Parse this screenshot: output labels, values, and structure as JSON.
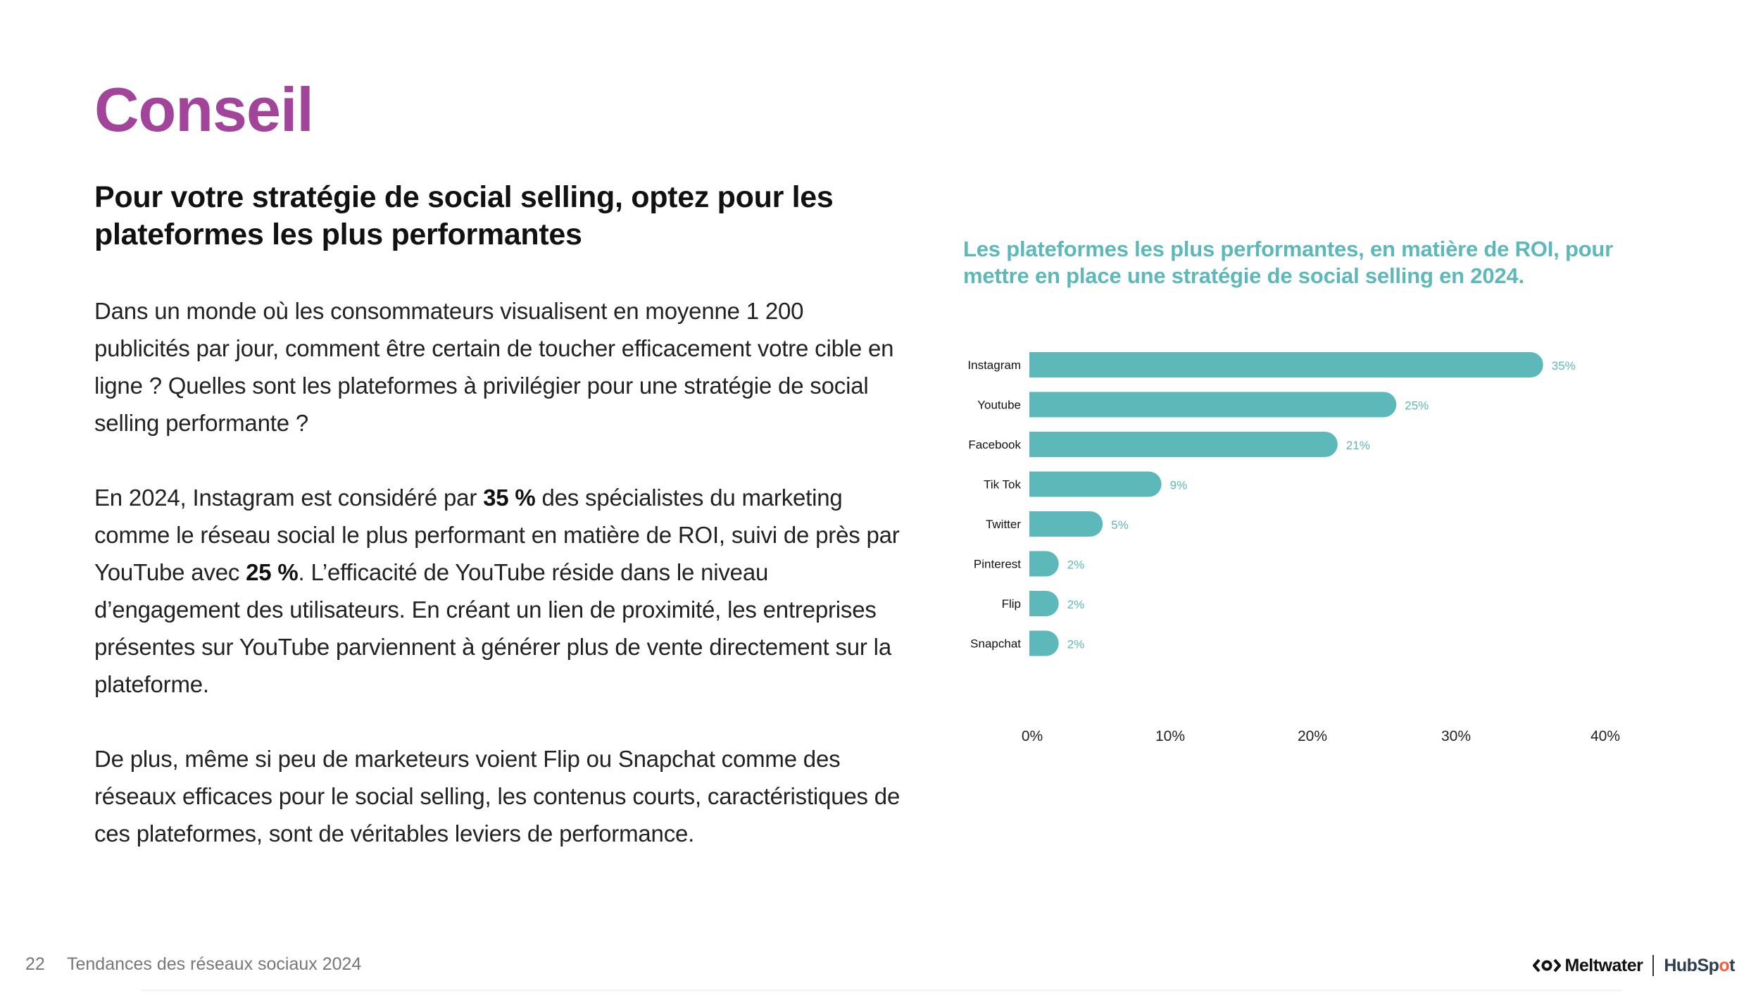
{
  "colors": {
    "title": "#a2449a",
    "accent": "#5cb8b9",
    "text": "#222222"
  },
  "page": {
    "title": "Conseil",
    "subtitle": "Pour votre stratégie de social selling, optez pour les plateformes les plus performantes"
  },
  "body": {
    "p1": "Dans un monde où les consommateurs visualisent en moyenne 1 200 publicités par jour, comment être certain de toucher efficacement votre cible en ligne ? Quelles sont les plateformes à privilégier pour une stratégie de social selling performante ?",
    "p2_a": "En 2024, Instagram est considéré par ",
    "p2_b": "35 %",
    "p2_c": " des spécialistes du marketing comme le réseau social le plus performant en matière de ROI, suivi de près par YouTube avec ",
    "p2_d": "25 %",
    "p2_e": ". L’efficacité de YouTube réside dans le niveau d’engagement des utilisateurs. En créant un lien de proximité, les entreprises présentes sur YouTube parviennent à générer plus de vente directement sur la plateforme.",
    "p3": "De plus, même si peu de marketeurs voient Flip ou Snapchat comme des réseaux efficaces pour le social selling, les contenus courts, caractéristiques de ces plateformes, sont de véritables leviers de performance."
  },
  "chart_data": {
    "type": "bar",
    "orientation": "horizontal",
    "title": "Les plateformes les plus performantes, en matière de ROI, pour mettre en place une stratégie de social selling en 2024.",
    "categories": [
      "Instagram",
      "Youtube",
      "Facebook",
      "Tik Tok",
      "Twitter",
      "Pinterest",
      "Flip",
      "Snapchat"
    ],
    "values": [
      35,
      25,
      21,
      9,
      5,
      2,
      2,
      2
    ],
    "value_labels": [
      "35%",
      "25%",
      "21%",
      "9%",
      "5%",
      "2%",
      "2%",
      "2%"
    ],
    "xticks": [
      "0%",
      "10%",
      "20%",
      "30%",
      "40%"
    ],
    "xlim": [
      0,
      40
    ],
    "xlabel": "",
    "ylabel": "",
    "grid": false,
    "legend": "none"
  },
  "footer": {
    "page_number": "22",
    "doc_title": "Tendances des réseaux sociaux 2024",
    "logo_meltwater": "Meltwater",
    "logo_hubspot_a": "HubSp",
    "logo_hubspot_o": "o",
    "logo_hubspot_b": "t"
  }
}
